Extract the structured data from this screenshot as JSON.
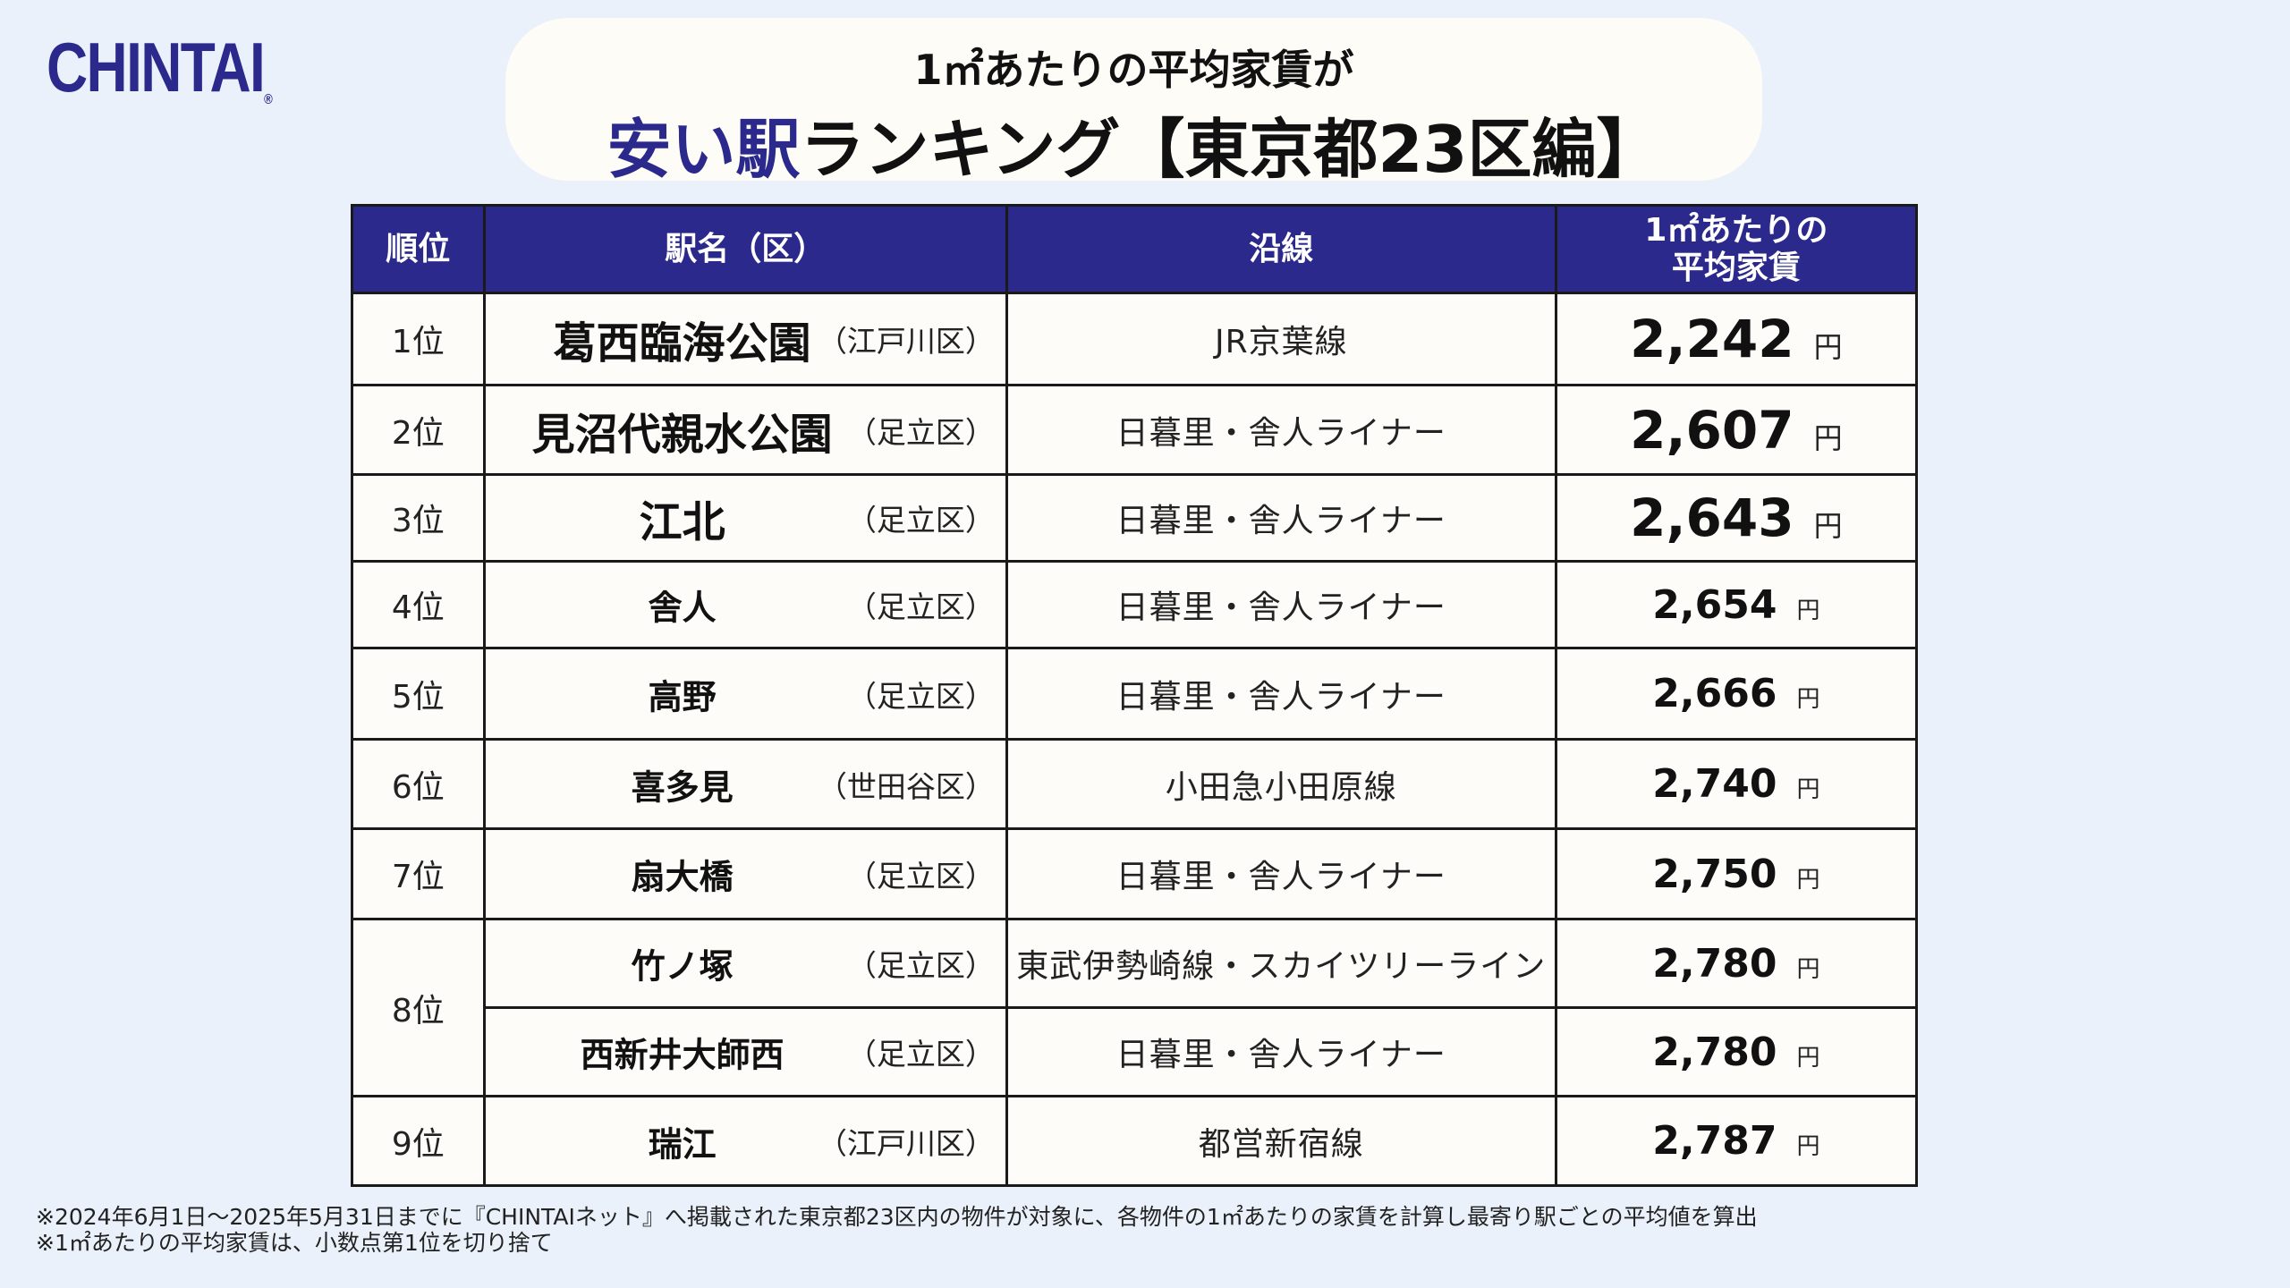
{
  "logo": {
    "text": "CHINTAI",
    "reg": "®"
  },
  "title": {
    "sub": "1㎡あたりの平均家賃が",
    "accent": "安い駅",
    "main": "ランキング【東京都23区編】"
  },
  "colors": {
    "accent": "#2b2a8c",
    "background": "#eaf1fa",
    "title_box": "#fdfcf6"
  },
  "table": {
    "headers": {
      "rank": "順位",
      "station": "駅名（区）",
      "line": "沿線",
      "rent_line1": "1㎡あたりの",
      "rent_line2": "平均家賃"
    },
    "unit": "円",
    "rows": [
      {
        "rank": "1位",
        "station": "葛西臨海公園",
        "ward": "（江戸川区）",
        "line": "JR京葉線",
        "rent": "2,242"
      },
      {
        "rank": "2位",
        "station": "見沼代親水公園",
        "ward": "（足立区）",
        "line": "日暮里・舎人ライナー",
        "rent": "2,607"
      },
      {
        "rank": "3位",
        "station": "江北",
        "ward": "（足立区）",
        "line": "日暮里・舎人ライナー",
        "rent": "2,643"
      },
      {
        "rank": "4位",
        "station": "舎人",
        "ward": "（足立区）",
        "line": "日暮里・舎人ライナー",
        "rent": "2,654"
      },
      {
        "rank": "5位",
        "station": "高野",
        "ward": "（足立区）",
        "line": "日暮里・舎人ライナー",
        "rent": "2,666"
      },
      {
        "rank": "6位",
        "station": "喜多見",
        "ward": "（世田谷区）",
        "line": "小田急小田原線",
        "rent": "2,740"
      },
      {
        "rank": "7位",
        "station": "扇大橋",
        "ward": "（足立区）",
        "line": "日暮里・舎人ライナー",
        "rent": "2,750"
      },
      {
        "rank": "8位",
        "station": "竹ノ塚",
        "ward": "（足立区）",
        "line": "東武伊勢崎線・スカイツリーライン",
        "rent": "2,780"
      },
      {
        "rank": "",
        "station": "西新井大師西",
        "ward": "（足立区）",
        "line": "日暮里・舎人ライナー",
        "rent": "2,780"
      },
      {
        "rank": "9位",
        "station": "瑞江",
        "ward": "（江戸川区）",
        "line": "都営新宿線",
        "rent": "2,787"
      }
    ]
  },
  "footnotes": {
    "line1": "※2024年6月1日～2025年5月31日までに『CHINTAIネット』へ掲載された東京都23区内の物件が対象に、各物件の1㎡あたりの家賃を計算し最寄り駅ごとの平均値を算出",
    "line2": "※1㎡あたりの平均家賃は、小数点第1位を切り捨て"
  }
}
